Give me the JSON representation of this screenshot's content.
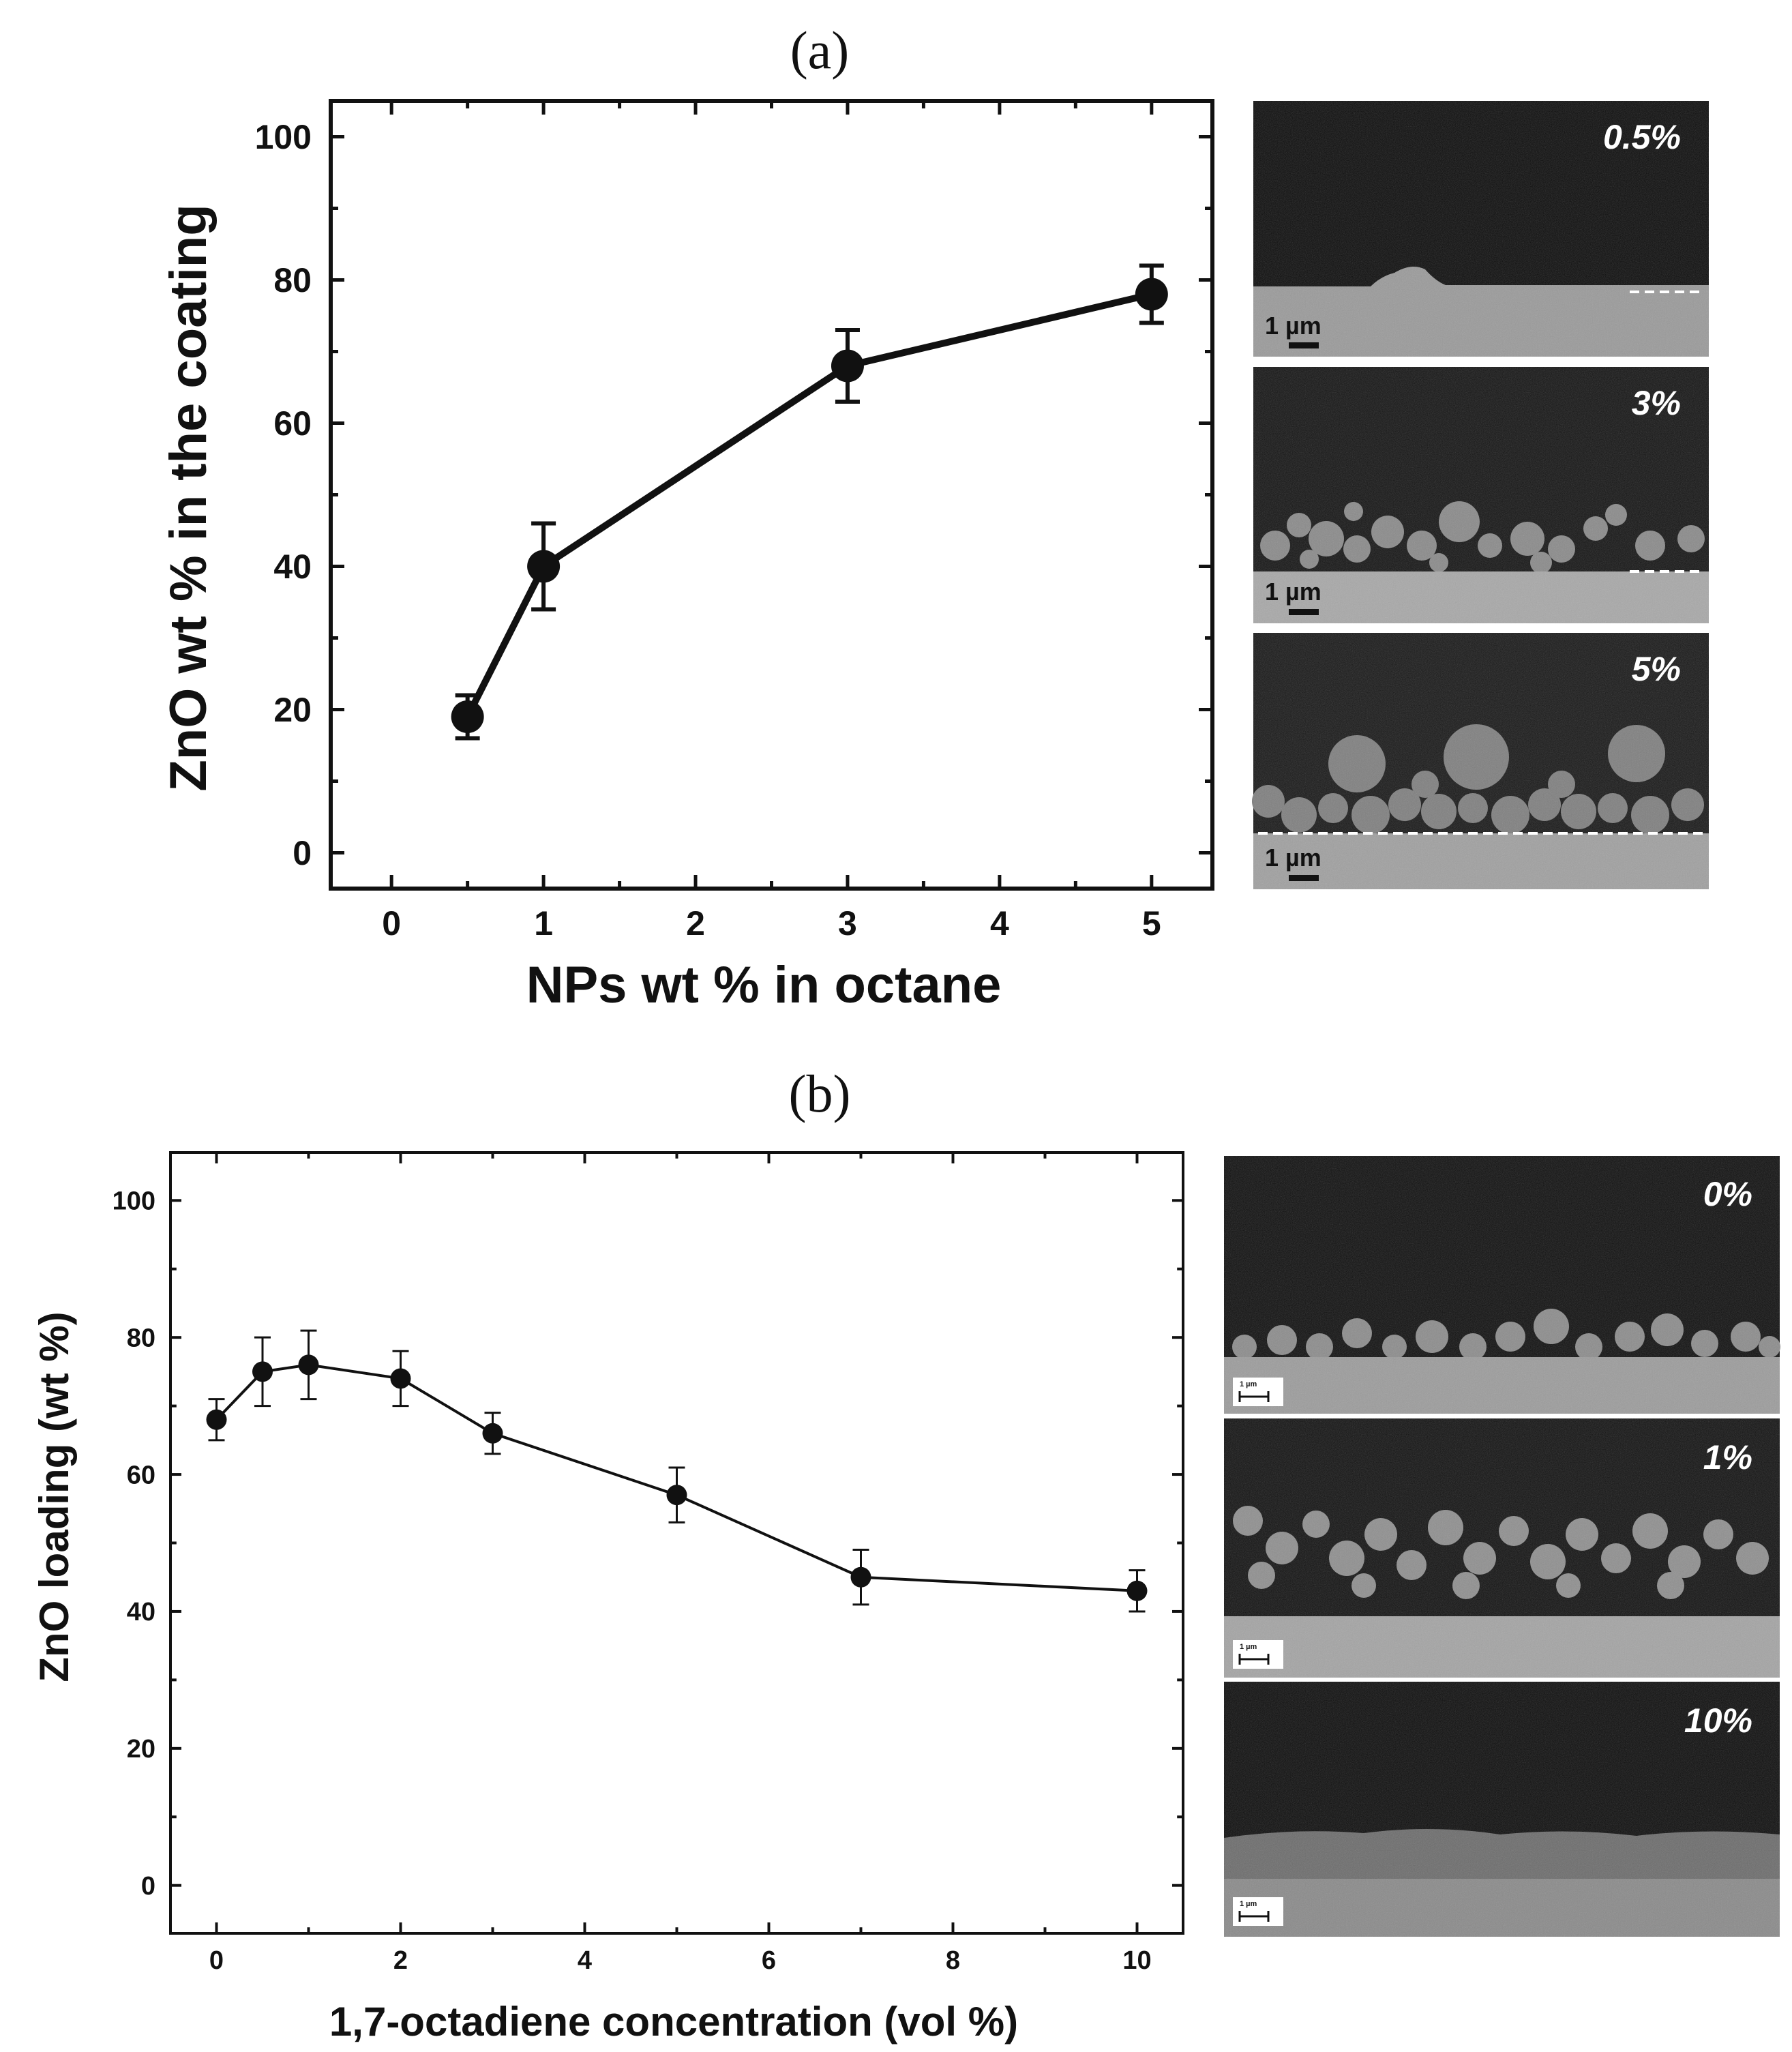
{
  "chart_data": [
    {
      "type": "line",
      "panel_label": "(a)",
      "xlabel": "NPs wt % in octane",
      "ylabel": "ZnO wt % in the coating",
      "xlim": [
        -0.4,
        5.4
      ],
      "ylim": [
        -5,
        105
      ],
      "xticks": [
        0,
        1,
        2,
        3,
        4,
        5
      ],
      "yticks": [
        0,
        20,
        40,
        60,
        80,
        100
      ],
      "grid": false,
      "series": [
        {
          "x": [
            0.5,
            1,
            3,
            5
          ],
          "y": [
            19,
            40,
            68,
            78
          ],
          "err_low": [
            3,
            6,
            5,
            4
          ],
          "err_high": [
            3,
            6,
            5,
            4
          ]
        }
      ],
      "sem_images": [
        {
          "label": "0.5%",
          "scale": "1 µm"
        },
        {
          "label": "3%",
          "scale": "1 µm"
        },
        {
          "label": "5%",
          "scale": "1 µm"
        }
      ]
    },
    {
      "type": "line",
      "panel_label": "(b)",
      "xlabel": "1,7-octadiene concentration (vol %)",
      "ylabel": "ZnO loading (wt %)",
      "xlim": [
        -0.5,
        10.5
      ],
      "ylim": [
        -7,
        107
      ],
      "xticks": [
        0,
        2,
        4,
        6,
        8,
        10
      ],
      "yticks": [
        0,
        20,
        40,
        60,
        80,
        100
      ],
      "grid": false,
      "series": [
        {
          "x": [
            0,
            0.5,
            1,
            2,
            3,
            5,
            7,
            10
          ],
          "y": [
            68,
            75,
            76,
            74,
            66,
            57,
            45,
            43
          ],
          "err_low": [
            3,
            5,
            5,
            4,
            3,
            4,
            4,
            3
          ],
          "err_high": [
            3,
            5,
            5,
            4,
            3,
            4,
            4,
            3
          ]
        }
      ],
      "sem_images": [
        {
          "label": "0%",
          "scale": "1 µm"
        },
        {
          "label": "1%",
          "scale": "1 µm"
        },
        {
          "label": "10%",
          "scale": "1 µm"
        }
      ]
    }
  ]
}
